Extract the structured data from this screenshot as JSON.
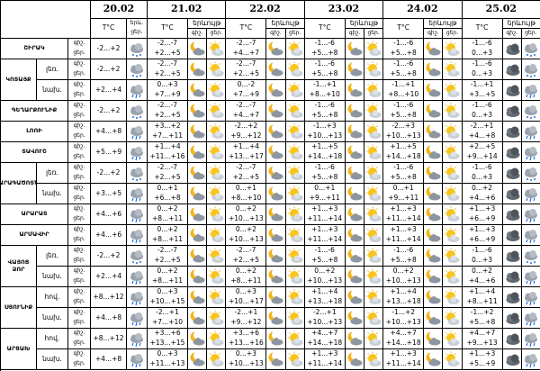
{
  "header": {
    "dates": [
      "20.02",
      "21.02",
      "22.02",
      "23.02",
      "24.02",
      "25.02"
    ],
    "temp": "T°C",
    "phenomenon": "երևույթ",
    "phenomenon_short": "երև.",
    "night": "գիշ.",
    "day": "ցեր."
  },
  "regions": [
    {
      "name": "ՇԻՐԱԿ",
      "zones": [
        {
          "today": "-2...+2",
          "days": [
            [
              "-2...-7",
              "+2...+5"
            ],
            [
              "-2...-7",
              "+4...+7"
            ],
            [
              "-1...-6",
              "+5...+8"
            ],
            [
              "-1...-6",
              "+5...+8"
            ],
            [
              "-1...-6",
              "0...+3"
            ]
          ]
        }
      ]
    },
    {
      "name": "ԿՈՏԱՅՔ",
      "zones": [
        {
          "zone": "լեռ.",
          "today": "-2...+2",
          "days": [
            [
              "-2...-7",
              "+2...+5"
            ],
            [
              "-2...-7",
              "+2...+5"
            ],
            [
              "-1...-6",
              "+5...+8"
            ],
            [
              "-1...-6",
              "+5...+8"
            ],
            [
              "-1...-6",
              "0...+3"
            ]
          ]
        },
        {
          "zone": "նախ.",
          "today": "+2...+4",
          "days": [
            [
              "0...+3",
              "+7...+9"
            ],
            [
              "0...-2",
              "+7...+9"
            ],
            [
              "-1...+1",
              "+8...+10"
            ],
            [
              "-1...+1",
              "+8...+10"
            ],
            [
              "-1...+1",
              "+3...+5"
            ]
          ]
        }
      ]
    },
    {
      "name": "ԳԵՂԱՐՔՈՒՆԻՔ",
      "zones": [
        {
          "today": "-2...+2",
          "days": [
            [
              "-2...-7",
              "+2...+5"
            ],
            [
              "-2...-7",
              "+4...+7"
            ],
            [
              "-1...-6",
              "+5...+8"
            ],
            [
              "-1...-6",
              "+5...+8"
            ],
            [
              "-1...-6",
              "0...+3"
            ]
          ]
        }
      ]
    },
    {
      "name": "ԼՈՌԻ",
      "zones": [
        {
          "today": "+4...+8",
          "days": [
            [
              "+3...+2",
              "+7...+11"
            ],
            [
              "-2...+2",
              "+9...+12"
            ],
            [
              "-1...+3",
              "+10...+13"
            ],
            [
              "-2...+3",
              "+10...+13"
            ],
            [
              "-2...+1",
              "+4...+8"
            ]
          ]
        }
      ]
    },
    {
      "name": "ՏԱՎՈՒՇ",
      "zones": [
        {
          "today": "+5...+9",
          "days": [
            [
              "+1...+4",
              "+11...+16"
            ],
            [
              "+1...+4",
              "+13...+17"
            ],
            [
              "+1...+5",
              "+14...+18"
            ],
            [
              "+1...+5",
              "+14...+18"
            ],
            [
              "+2...+5",
              "+9...+14"
            ]
          ]
        }
      ]
    },
    {
      "name": "ԱՐԱԳԱԾՈՏՆ",
      "zones": [
        {
          "zone": "լեռ.",
          "today": "-2...+2",
          "days": [
            [
              "-2...-7",
              "+2...+5"
            ],
            [
              "-2...-7",
              "+2...+5"
            ],
            [
              "-1...-6",
              "+5...+8"
            ],
            [
              "-1...-6",
              "+5...+8"
            ],
            [
              "-1...-6",
              "0...+3"
            ]
          ]
        },
        {
          "zone": "նախ.",
          "today": "+3...+5",
          "days": [
            [
              "0...+1",
              "+6...+8"
            ],
            [
              "0...+1",
              "+8...+10"
            ],
            [
              "0...+1",
              "+9...+11"
            ],
            [
              "0...+1",
              "+9...+11"
            ],
            [
              "0...+2",
              "+4...+6"
            ]
          ]
        }
      ]
    },
    {
      "name": "ԱՐԱՐԱՏ",
      "zones": [
        {
          "today": "+4...+6",
          "days": [
            [
              "0...+2",
              "+8...+11"
            ],
            [
              "0...+2",
              "+10...+13"
            ],
            [
              "+1...+3",
              "+11...+14"
            ],
            [
              "+1...+3",
              "+11...+14"
            ],
            [
              "+1...+3",
              "+6...+9"
            ]
          ]
        }
      ]
    },
    {
      "name": "ԱՐՄԱՎԻՐ",
      "zones": [
        {
          "today": "+4...+6",
          "days": [
            [
              "0...+2",
              "+8...+11"
            ],
            [
              "0...+2",
              "+10...+13"
            ],
            [
              "+1...+3",
              "+11...+14"
            ],
            [
              "+1...+3",
              "+11...+14"
            ],
            [
              "+1...+3",
              "+6...+9"
            ]
          ]
        }
      ]
    },
    {
      "name": "ՎԱՅՈՑ ՁՈՐ",
      "zones": [
        {
          "zone": "լեռ.",
          "today": "-2...+2",
          "days": [
            [
              "-2...-7",
              "+2...+5"
            ],
            [
              "-2...-7",
              "+2...+5"
            ],
            [
              "-1...-6",
              "+5...+8"
            ],
            [
              "-1...-6",
              "+5...+8"
            ],
            [
              "-1...-6",
              "0...+3"
            ]
          ]
        },
        {
          "zone": "նախ.",
          "today": "+2...+4",
          "days": [
            [
              "0...+2",
              "+8...+11"
            ],
            [
              "0...+2",
              "+8...+11"
            ],
            [
              "0...+2",
              "+10...+13"
            ],
            [
              "0...+2",
              "+10...+13"
            ],
            [
              "0...+2",
              "+4...+6"
            ]
          ]
        }
      ]
    },
    {
      "name": "ՍՅՈՒՆԻՔ",
      "zones": [
        {
          "zone": "հով.",
          "today": "+8...+12",
          "days": [
            [
              "0...+3",
              "+10...+15"
            ],
            [
              "0...+3",
              "+10...+17"
            ],
            [
              "+1...+4",
              "+13...+18"
            ],
            [
              "+1...+4",
              "+13...+18"
            ],
            [
              "+1...+4",
              "+8...+11"
            ]
          ]
        },
        {
          "zone": "նախ.",
          "today": "+4...+8",
          "days": [
            [
              "-2...+1",
              "+7...+10"
            ],
            [
              "-2...+1",
              "+9...+12"
            ],
            [
              "-2...+1",
              "+10...+13"
            ],
            [
              "-1...+2",
              "+10...+13"
            ],
            [
              "-1...+2",
              "+5...+8"
            ]
          ]
        }
      ]
    },
    {
      "name": "ԱՐՑԱԽ",
      "zones": [
        {
          "zone": "հով.",
          "today": "+8...+12",
          "days": [
            [
              "+3...+6",
              "+13...+15"
            ],
            [
              "+3...+6",
              "+13...+16"
            ],
            [
              "+4...+7",
              "+14...+18"
            ],
            [
              "+4...+7",
              "+14...+18"
            ],
            [
              "+4...+7",
              "+9...+13"
            ]
          ]
        },
        {
          "zone": "նախ.",
          "today": "+4...+8",
          "days": [
            [
              "0...+3",
              "+11...+13"
            ],
            [
              "0...+3",
              "+10...+13"
            ],
            [
              "+1...+3",
              "+11...+14"
            ],
            [
              "+1...+3",
              "+11...+14"
            ],
            [
              "+1...+3",
              "+5...+9"
            ]
          ]
        }
      ]
    }
  ]
}
